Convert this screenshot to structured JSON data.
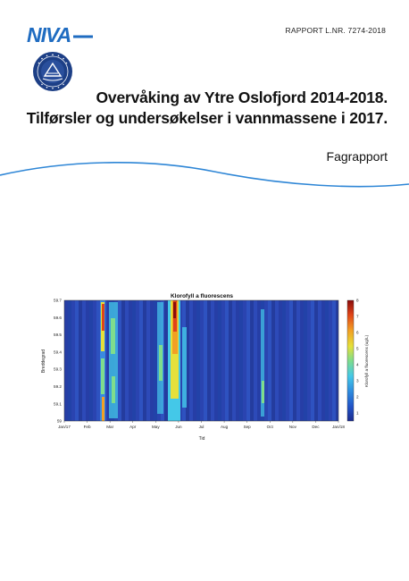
{
  "header": {
    "logo_text": "NIVA",
    "report_number": "RAPPORT L.NR. 7274-2018"
  },
  "seal": {
    "icon": "niva-institute-seal"
  },
  "title": {
    "line1": "Overvåking av Ytre Oslofjord 2014-2018.",
    "line2": "Tilførsler og undersøkelser i vannmassene i 2017."
  },
  "subtitle": "Fagrapport",
  "colors": {
    "brand_blue": "#1f6cc1",
    "wave_blue": "#2e86d6"
  },
  "figure": {
    "chart_data": {
      "type": "heatmap",
      "title": "Klorofyll a fluorescens",
      "xlabel": "Tid",
      "ylabel": "Breddegrad",
      "colorbar_label": "Klorofyll a fluorescens (ug/L)",
      "x_ticks": [
        "Jan/17",
        "Feb",
        "Mar",
        "Apr",
        "May",
        "Jun",
        "Jul",
        "Aug",
        "Sep",
        "Oct",
        "Nov",
        "Dec",
        "Jan/18"
      ],
      "y_ticks": [
        "59",
        "59.1",
        "59.2",
        "59.3",
        "59.4",
        "59.5",
        "59.6",
        "59.7"
      ],
      "ylim": [
        59,
        59.7
      ],
      "colorbar_ticks": [
        "1",
        "2",
        "3",
        "4",
        "5",
        "6",
        "7",
        "8"
      ],
      "clim": [
        0.5,
        8
      ],
      "colorscale": [
        "#1c2c8f",
        "#2154c8",
        "#2f8ee0",
        "#44c8e8",
        "#7fdd8c",
        "#e6e03a",
        "#f2a024",
        "#e04418",
        "#8a0c0c"
      ],
      "hotspots": [
        {
          "period": "Mar",
          "value": 7.5
        },
        {
          "period": "Apr",
          "value": 3.5
        },
        {
          "period": "Jun",
          "value": 8.0
        },
        {
          "period": "Oct",
          "value": 3.0
        }
      ]
    }
  }
}
